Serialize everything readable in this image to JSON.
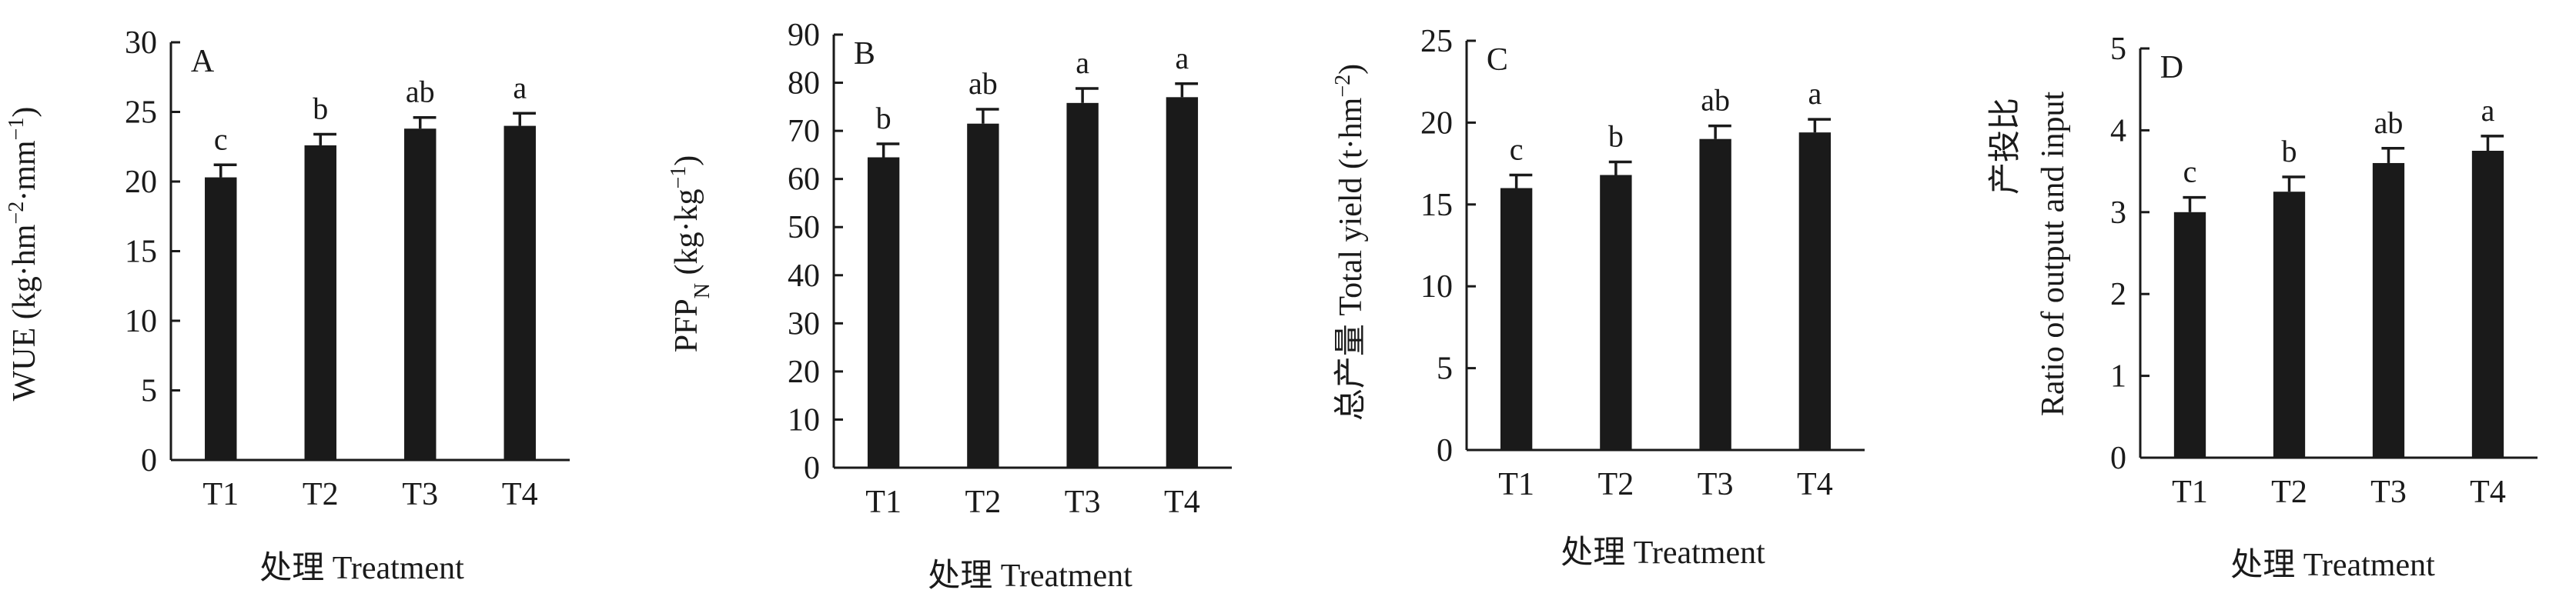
{
  "chart_data": [
    {
      "type": "bar",
      "panel_label": "A",
      "categories": [
        "T1",
        "T2",
        "T3",
        "T4"
      ],
      "values": [
        20.3,
        22.6,
        23.8,
        24.0
      ],
      "errors": [
        0.9,
        0.8,
        0.8,
        0.9
      ],
      "letters": [
        "c",
        "b",
        "ab",
        "a"
      ],
      "ylim": [
        0,
        30
      ],
      "yticks": [
        0,
        5,
        10,
        15,
        20,
        25,
        30
      ],
      "ylabel": "WUE (kg·hm⁻²·mm⁻¹)",
      "xlabel": "处理 Treatment"
    },
    {
      "type": "bar",
      "panel_label": "B",
      "categories": [
        "T1",
        "T2",
        "T3",
        "T4"
      ],
      "values": [
        64.5,
        71.5,
        75.8,
        77.0
      ],
      "errors": [
        2.8,
        3.0,
        3.0,
        2.8
      ],
      "letters": [
        "b",
        "ab",
        "a",
        "a"
      ],
      "ylim": [
        0,
        90
      ],
      "yticks": [
        0,
        10,
        20,
        30,
        40,
        50,
        60,
        70,
        80,
        90
      ],
      "ylabel": "PFPN (kg·kg⁻¹)",
      "xlabel": "处理 Treatment"
    },
    {
      "type": "bar",
      "panel_label": "C",
      "categories": [
        "T1",
        "T2",
        "T3",
        "T4"
      ],
      "values": [
        16.0,
        16.8,
        19.0,
        19.4
      ],
      "errors": [
        0.8,
        0.8,
        0.8,
        0.8
      ],
      "letters": [
        "c",
        "b",
        "ab",
        "a"
      ],
      "ylim": [
        0,
        25
      ],
      "yticks": [
        0,
        5,
        10,
        15,
        20,
        25
      ],
      "ylabel": "总产量 Total yield (t·hm⁻²)",
      "xlabel": "处理 Treatment"
    },
    {
      "type": "bar",
      "panel_label": "D",
      "categories": [
        "T1",
        "T2",
        "T3",
        "T4"
      ],
      "values": [
        3.0,
        3.25,
        3.6,
        3.75
      ],
      "errors": [
        0.18,
        0.18,
        0.18,
        0.18
      ],
      "letters": [
        "c",
        "b",
        "ab",
        "a"
      ],
      "ylim": [
        0,
        5
      ],
      "yticks": [
        0,
        1,
        2,
        3,
        4,
        5
      ],
      "ylabel_cn": "产投比",
      "ylabel": "Ratio of output and input",
      "xlabel": "处理 Treatment"
    }
  ]
}
